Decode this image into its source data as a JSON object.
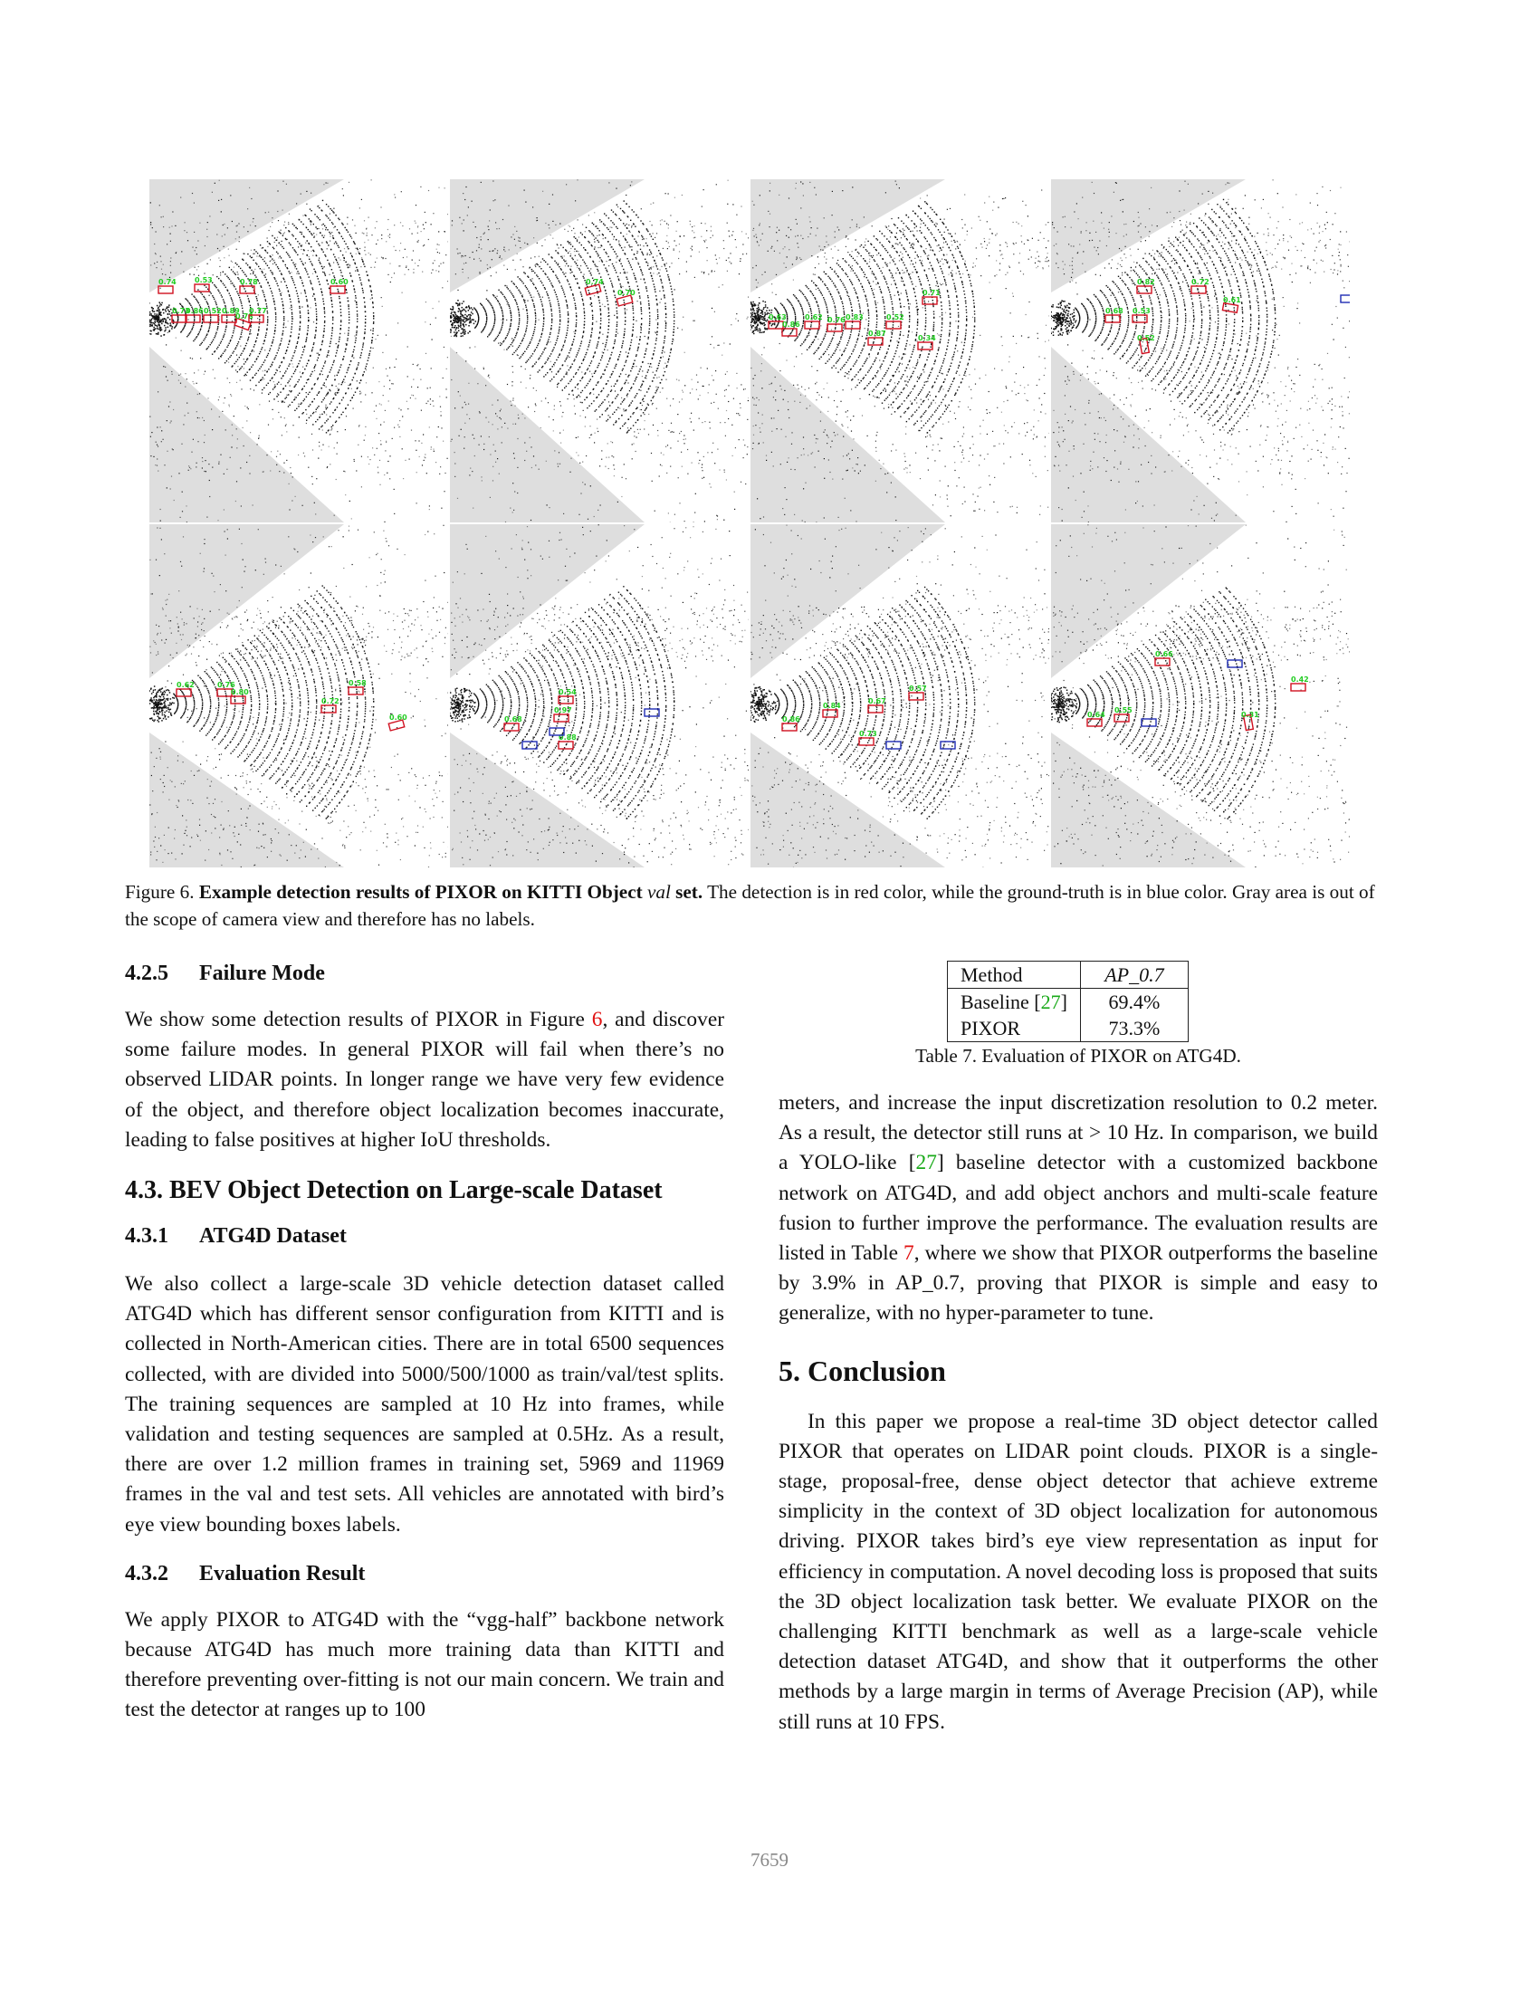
{
  "figure": {
    "panels": [
      {
        "id": "r1c1",
        "scores": [
          "0.74",
          "0.53",
          "0.78",
          "0.60",
          "0.73",
          "0.86",
          "0.52",
          "0.89",
          "0.78",
          "0.77"
        ]
      },
      {
        "id": "r1c2",
        "scores": [
          "0.74",
          "0.70"
        ]
      },
      {
        "id": "r1c3",
        "scores": [
          "0.71",
          "0.63",
          "0.62",
          "0.52",
          "0.83",
          "0.86",
          "0.87",
          "0.34",
          "0.76"
        ]
      },
      {
        "id": "r1c4",
        "scores": [
          "0.82",
          "0.72",
          "0.61",
          "0.68",
          "0.53",
          "0.52"
        ]
      },
      {
        "id": "r2c1",
        "scores": [
          "0.62",
          "0.76",
          "0.58",
          "0.80",
          "0.72",
          "0.60"
        ]
      },
      {
        "id": "r2c2",
        "scores": [
          "0.54",
          "0.97",
          "0.68",
          "0.88"
        ]
      },
      {
        "id": "r2c3",
        "scores": [
          "0.57",
          "0.67",
          "0.84",
          "0.73",
          "0.86"
        ]
      },
      {
        "id": "r2c4",
        "scores": [
          "0.66",
          "0.42",
          "0.64",
          "0.31",
          "0.55"
        ]
      }
    ],
    "colors": {
      "detection": "#d01020",
      "ground_truth": "#1e2cb4",
      "score": "#22cc22",
      "out_of_view": "#dedede"
    },
    "caption": {
      "label": "Figure 6.",
      "bold_part1": "Example detection results of PIXOR on KITTI Object",
      "italic": "val",
      "bold_part2": "set.",
      "rest": "The detection is in red color, while the ground-truth is in blue color. Gray area is out of the scope of camera view and therefore has no labels."
    }
  },
  "s425": {
    "number": "4.2.5",
    "title": "Failure Mode",
    "p1_a": "We show some detection results of PIXOR in Figure",
    "p1_ref": "6",
    "p1_b": ", and discover some failure modes. In general PIXOR will fail when there’s no observed LIDAR points. In longer range we have very few evidence of the object, and therefore object localization becomes inaccurate, leading to false positives at higher IoU thresholds."
  },
  "s43": {
    "title": "4.3. BEV Object Detection on Large-scale Dataset"
  },
  "s431": {
    "number": "4.3.1",
    "title": "ATG4D Dataset",
    "p1": "We also collect a large-scale 3D vehicle detection dataset called ATG4D which has different sensor configuration from KITTI and is collected in North-American cities. There are in total 6500 sequences collected, with are divided into 5000/500/1000 as train/val/test splits. The training sequences are sampled at 10 Hz into frames, while validation and testing sequences are sampled at 0.5Hz. As a result, there are over 1.2 million frames in training set, 5969 and 11969 frames in the val and test sets. All vehicles are annotated with bird’s eye view bounding boxes labels."
  },
  "s432": {
    "number": "4.3.2",
    "title": "Evaluation Result",
    "p1": "We apply PIXOR to ATG4D with the “vgg-half” backbone network because ATG4D has much more training data than KITTI and therefore preventing over-fitting is not our main concern. We train and test the detector at ranges up to 100",
    "p2_a": "meters, and increase the input discretization resolution to 0.2 meter. As a result, the detector still runs at > 10 Hz. In comparison, we build a YOLO-like [",
    "p2_ref": "27",
    "p2_b": "] baseline detector with a customized backbone network on ATG4D, and add object anchors and multi-scale feature fusion to further improve the performance. The evaluation results are listed in Table",
    "p2_tref": "7",
    "p2_c": ", where we show that PIXOR outperforms the baseline by 3.9% in AP_0.7, proving that PIXOR is simple and easy to generalize, with no hyper-parameter to tune."
  },
  "table7": {
    "header": [
      "Method",
      "AP_0.7"
    ],
    "rows": [
      {
        "method": "Baseline [",
        "ref": "27",
        "method_end": "]",
        "ap": "69.4%"
      },
      {
        "method": "PIXOR",
        "ap": "73.3%"
      }
    ],
    "caption": "Table 7. Evaluation of PIXOR on ATG4D."
  },
  "s5": {
    "title": "5. Conclusion",
    "p1": "In this paper we propose a real-time 3D object detector called PIXOR that operates on LIDAR point clouds. PIXOR is a single-stage, proposal-free, dense object detector that achieve extreme simplicity in the context of 3D object localization for autonomous driving. PIXOR takes bird’s eye view representation as input for efficiency in computation. A novel decoding loss is proposed that suits the 3D object localization task better. We evaluate PIXOR on the challenging KITTI benchmark as well as a large-scale vehicle detection dataset ATG4D, and show that it outperforms the other methods by a large margin in terms of Average Precision (AP), while still runs at 10 FPS."
  },
  "page_number": "7659"
}
